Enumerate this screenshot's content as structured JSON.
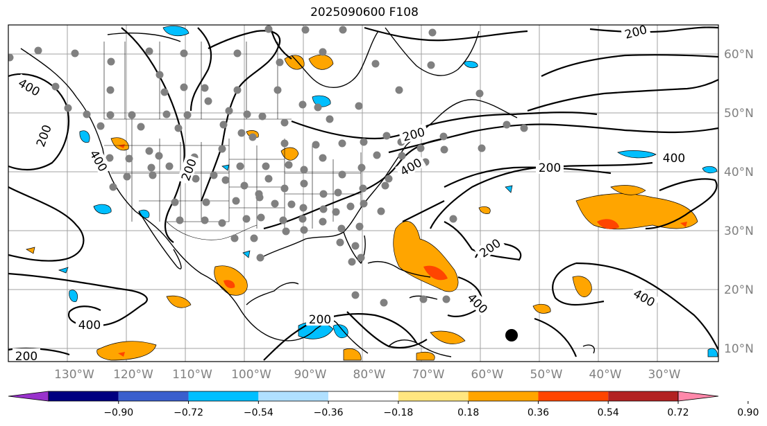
{
  "title": "2025090600 F108",
  "lon_labels": [
    "130°W",
    "120°W",
    "110°W",
    "100°W",
    "90°W",
    "80°W",
    "70°W",
    "60°W",
    "50°W",
    "40°W",
    "30°W"
  ],
  "lat_labels": [
    "60°N",
    "50°N",
    "40°N",
    "30°N",
    "20°N",
    "10°N"
  ],
  "contour_labels": [
    "200",
    "400",
    "200",
    "400",
    "200",
    "200",
    "400",
    "200",
    "400",
    "200",
    "400",
    "400",
    "200",
    "200",
    "400"
  ],
  "colorbar": {
    "ticks": [
      "−0.90",
      "−0.72",
      "−0.54",
      "−0.36",
      "−0.18",
      "0.18",
      "0.36",
      "0.54",
      "0.72",
      "0.90"
    ],
    "colors": [
      "#9932cc",
      "#000080",
      "#3a5fcd",
      "#00bfff",
      "#b0e0ff",
      "#ffffff",
      "#ffe680",
      "#ffa500",
      "#ff4500",
      "#b22222",
      "#ff88aa"
    ]
  },
  "colors": {
    "positive_fill": "#ffa500",
    "positive_strong": "#ff4500",
    "negative_fill": "#00bfff",
    "station_dot": "#808080",
    "marker": "#000000"
  }
}
